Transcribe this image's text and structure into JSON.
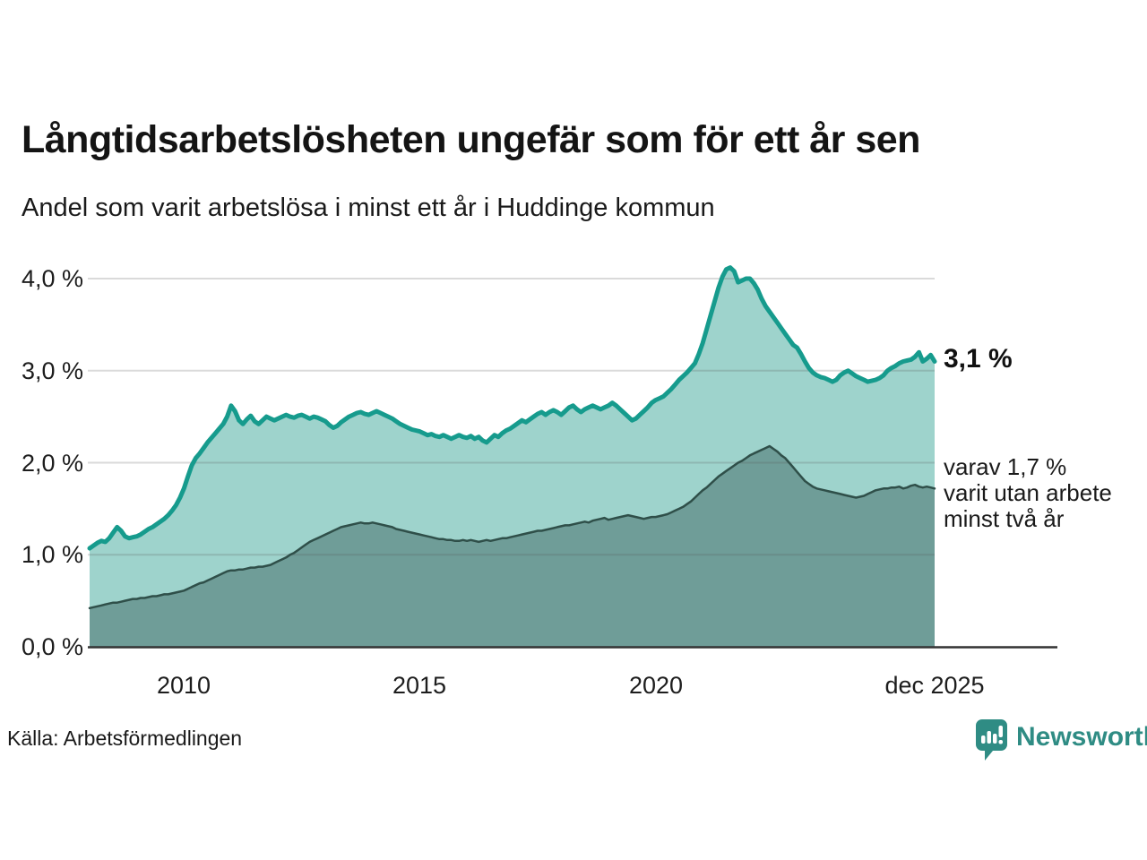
{
  "header": {
    "title": "Långtidsarbetslösheten ungefär som för ett år sen",
    "subtitle": "Andel som varit arbetslösa i minst ett år i Huddinge kommun"
  },
  "chart_data": {
    "type": "area",
    "title": "Långtidsarbetslösheten ungefär som för ett år sen",
    "subtitle": "Andel som varit arbetslösa i minst ett år i Huddinge kommun",
    "unit": "%",
    "frequency": "monthly",
    "x_start_year": 2008,
    "x_end_label": "dec 2025",
    "ylim": [
      0,
      4.2
    ],
    "y_gridlines": [
      1,
      2,
      3,
      4
    ],
    "grid": true,
    "y_tick_labels": [
      "4,0 %",
      "3,0 %",
      "2,0 %",
      "1,0 %",
      "0,0 %"
    ],
    "x_tick_labels": [
      "2010",
      "2015",
      "2020",
      "dec 2025"
    ],
    "x_tick_month_indices": [
      24,
      84,
      144,
      215
    ],
    "series": [
      {
        "name": "Arbetslösa minst ett år",
        "line_color": "#169b8d",
        "fill_color": "#9ed3cc",
        "line_width": 5,
        "latest_value": 3.1,
        "values": [
          1.07,
          1.1,
          1.13,
          1.15,
          1.14,
          1.18,
          1.24,
          1.3,
          1.26,
          1.2,
          1.18,
          1.19,
          1.2,
          1.22,
          1.25,
          1.28,
          1.3,
          1.33,
          1.36,
          1.39,
          1.43,
          1.48,
          1.54,
          1.62,
          1.72,
          1.85,
          1.97,
          2.05,
          2.1,
          2.16,
          2.22,
          2.27,
          2.32,
          2.37,
          2.42,
          2.5,
          2.62,
          2.56,
          2.46,
          2.42,
          2.47,
          2.51,
          2.45,
          2.42,
          2.46,
          2.5,
          2.48,
          2.46,
          2.48,
          2.5,
          2.52,
          2.5,
          2.49,
          2.51,
          2.52,
          2.5,
          2.48,
          2.5,
          2.49,
          2.47,
          2.45,
          2.41,
          2.38,
          2.4,
          2.44,
          2.47,
          2.5,
          2.52,
          2.54,
          2.55,
          2.53,
          2.52,
          2.54,
          2.56,
          2.54,
          2.52,
          2.5,
          2.48,
          2.45,
          2.42,
          2.4,
          2.38,
          2.36,
          2.35,
          2.34,
          2.32,
          2.3,
          2.31,
          2.29,
          2.28,
          2.3,
          2.28,
          2.26,
          2.28,
          2.3,
          2.28,
          2.27,
          2.29,
          2.26,
          2.28,
          2.24,
          2.22,
          2.26,
          2.3,
          2.28,
          2.32,
          2.35,
          2.37,
          2.4,
          2.43,
          2.46,
          2.44,
          2.47,
          2.5,
          2.53,
          2.55,
          2.52,
          2.55,
          2.57,
          2.55,
          2.52,
          2.56,
          2.6,
          2.62,
          2.58,
          2.55,
          2.58,
          2.6,
          2.62,
          2.6,
          2.58,
          2.6,
          2.62,
          2.65,
          2.62,
          2.58,
          2.54,
          2.5,
          2.46,
          2.48,
          2.52,
          2.56,
          2.6,
          2.65,
          2.68,
          2.7,
          2.72,
          2.76,
          2.8,
          2.85,
          2.9,
          2.94,
          2.98,
          3.03,
          3.08,
          3.18,
          3.3,
          3.45,
          3.6,
          3.75,
          3.9,
          4.02,
          4.1,
          4.12,
          4.08,
          3.96,
          3.98,
          4.0,
          4.0,
          3.95,
          3.88,
          3.78,
          3.7,
          3.64,
          3.58,
          3.52,
          3.46,
          3.4,
          3.34,
          3.28,
          3.25,
          3.18,
          3.1,
          3.03,
          2.98,
          2.95,
          2.93,
          2.92,
          2.9,
          2.88,
          2.9,
          2.95,
          2.98,
          3.0,
          2.97,
          2.94,
          2.92,
          2.9,
          2.88,
          2.89,
          2.9,
          2.92,
          2.95,
          3.0,
          3.03,
          3.05,
          3.08,
          3.1,
          3.11,
          3.12,
          3.15,
          3.2,
          3.1,
          3.13,
          3.17,
          3.1
        ]
      },
      {
        "name": "varav utan arbete minst två år",
        "line_color": "#2f4f49",
        "fill_color": "#6f9d98",
        "line_width": 2.5,
        "latest_value": 1.7,
        "values": [
          0.42,
          0.43,
          0.44,
          0.45,
          0.46,
          0.47,
          0.48,
          0.48,
          0.49,
          0.5,
          0.51,
          0.52,
          0.52,
          0.53,
          0.53,
          0.54,
          0.55,
          0.55,
          0.56,
          0.57,
          0.57,
          0.58,
          0.59,
          0.6,
          0.61,
          0.63,
          0.65,
          0.67,
          0.69,
          0.7,
          0.72,
          0.74,
          0.76,
          0.78,
          0.8,
          0.82,
          0.83,
          0.83,
          0.84,
          0.84,
          0.85,
          0.86,
          0.86,
          0.87,
          0.87,
          0.88,
          0.89,
          0.91,
          0.93,
          0.95,
          0.97,
          1.0,
          1.02,
          1.05,
          1.08,
          1.11,
          1.14,
          1.16,
          1.18,
          1.2,
          1.22,
          1.24,
          1.26,
          1.28,
          1.3,
          1.31,
          1.32,
          1.33,
          1.34,
          1.35,
          1.34,
          1.34,
          1.35,
          1.34,
          1.33,
          1.32,
          1.31,
          1.3,
          1.28,
          1.27,
          1.26,
          1.25,
          1.24,
          1.23,
          1.22,
          1.21,
          1.2,
          1.19,
          1.18,
          1.17,
          1.17,
          1.16,
          1.16,
          1.15,
          1.15,
          1.16,
          1.15,
          1.16,
          1.15,
          1.14,
          1.15,
          1.16,
          1.15,
          1.16,
          1.17,
          1.18,
          1.18,
          1.19,
          1.2,
          1.21,
          1.22,
          1.23,
          1.24,
          1.25,
          1.26,
          1.26,
          1.27,
          1.28,
          1.29,
          1.3,
          1.31,
          1.32,
          1.32,
          1.33,
          1.34,
          1.35,
          1.36,
          1.35,
          1.37,
          1.38,
          1.39,
          1.4,
          1.38,
          1.39,
          1.4,
          1.41,
          1.42,
          1.43,
          1.42,
          1.41,
          1.4,
          1.39,
          1.4,
          1.41,
          1.41,
          1.42,
          1.43,
          1.44,
          1.46,
          1.48,
          1.5,
          1.52,
          1.55,
          1.58,
          1.62,
          1.66,
          1.7,
          1.73,
          1.77,
          1.81,
          1.85,
          1.88,
          1.91,
          1.94,
          1.97,
          2.0,
          2.02,
          2.05,
          2.08,
          2.1,
          2.12,
          2.14,
          2.16,
          2.18,
          2.15,
          2.12,
          2.08,
          2.05,
          2.0,
          1.95,
          1.9,
          1.85,
          1.8,
          1.77,
          1.74,
          1.72,
          1.71,
          1.7,
          1.69,
          1.68,
          1.67,
          1.66,
          1.65,
          1.64,
          1.63,
          1.62,
          1.63,
          1.64,
          1.66,
          1.68,
          1.7,
          1.71,
          1.72,
          1.72,
          1.73,
          1.73,
          1.74,
          1.72,
          1.73,
          1.75,
          1.76,
          1.74,
          1.73,
          1.74,
          1.73,
          1.72
        ]
      }
    ],
    "annotations": {
      "latest_value_label": "3,1 %",
      "secondary_line_1": "varav 1,7 %",
      "secondary_line_2": "varit utan arbete",
      "secondary_line_3": "minst två år"
    }
  },
  "footer": {
    "source": "Källa: Arbetsförmedlingen",
    "logo_text": "Newsworthy"
  },
  "colors": {
    "primary_line": "#169b8d",
    "primary_fill": "#9ed3cc",
    "secondary_line": "#2f4f49",
    "secondary_fill": "#6f9d98",
    "gridline": "#555555",
    "axis": "#333333",
    "text": "#1a1a1a",
    "brand": "#2f8c84"
  }
}
